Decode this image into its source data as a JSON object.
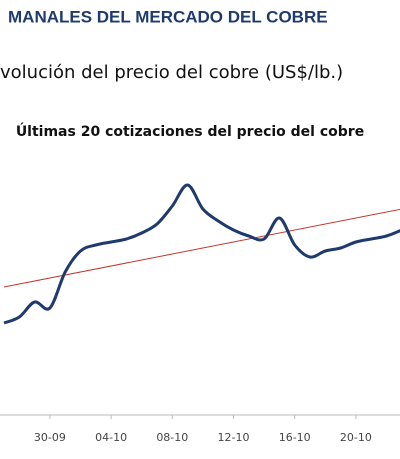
{
  "chart_data": {
    "type": "line",
    "title": "MANALES DEL MERCADO DEL COBRE",
    "subtitle": "volución del precio del cobre (US$/lb.)",
    "chart_title": "Últimas 20 cotizaciones del precio del cobre",
    "categories": [
      null,
      null,
      null,
      "30-09",
      null,
      null,
      null,
      "04-10",
      null,
      null,
      null,
      "08-10",
      null,
      null,
      null,
      "12-10",
      null,
      null,
      null,
      "16-10",
      null,
      null,
      null,
      "20-10",
      null,
      null,
      null
    ],
    "series": [
      {
        "color": "#1f3b6e",
        "values": [
          3.09,
          3.11,
          3.16,
          3.14,
          3.26,
          3.33,
          3.35,
          3.36,
          3.37,
          3.39,
          3.42,
          3.48,
          3.55,
          3.47,
          3.43,
          3.4,
          3.38,
          3.37,
          3.44,
          3.35,
          3.31,
          3.33,
          3.34,
          3.36,
          3.37,
          3.38,
          3.4
        ]
      }
    ],
    "trend": {
      "color": "#c0392b",
      "values": [
        3.21,
        3.47
      ]
    },
    "ylim": [
      3.0,
      3.6
    ]
  }
}
